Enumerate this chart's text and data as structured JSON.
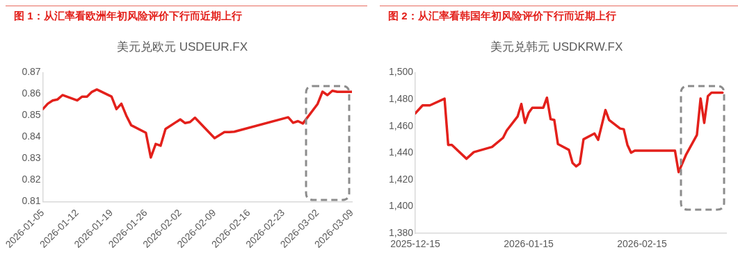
{
  "chart_data": [
    {
      "type": "line",
      "title": "图 1：从汇率看欧洲年初风险评价下行而近期上行",
      "subtitle": "美元兑欧元 USDEUR.FX",
      "x": [
        "2026-01-05",
        "2026-01-06",
        "2026-01-07",
        "2026-01-08",
        "2026-01-09",
        "2026-01-12",
        "2026-01-13",
        "2026-01-14",
        "2026-01-15",
        "2026-01-16",
        "2026-01-19",
        "2026-01-20",
        "2026-01-21",
        "2026-01-22",
        "2026-01-23",
        "2026-01-26",
        "2026-01-27",
        "2026-01-28",
        "2026-01-29",
        "2026-01-30",
        "2026-02-02",
        "2026-02-03",
        "2026-02-04",
        "2026-02-05",
        "2026-02-09",
        "2026-02-11",
        "2026-02-12",
        "2026-02-13",
        "2026-02-24",
        "2026-02-25",
        "2026-02-26",
        "2026-02-27",
        "2026-03-02",
        "2026-03-03",
        "2026-03-04",
        "2026-03-05",
        "2026-03-06",
        "2026-03-09"
      ],
      "series": [
        {
          "color": "#e3201b",
          "values": [
            0.853,
            0.8555,
            0.857,
            0.8575,
            0.8595,
            0.857,
            0.8588,
            0.8588,
            0.861,
            0.8621,
            0.8588,
            0.853,
            0.8555,
            0.85,
            0.8455,
            0.842,
            0.8305,
            0.8368,
            0.836,
            0.8438,
            0.8482,
            0.8465,
            0.847,
            0.849,
            0.8395,
            0.8423,
            0.8423,
            0.8425,
            0.8492,
            0.8466,
            0.8474,
            0.8463,
            0.8554,
            0.8611,
            0.8595,
            0.8615,
            0.861,
            0.861
          ]
        }
      ],
      "xlim": [
        "2026-01-05",
        "2026-03-09"
      ],
      "xticks": [
        "2026-01-05",
        "2026-01-12",
        "2026-01-19",
        "2026-01-26",
        "2026-02-02",
        "2026-02-09",
        "2026-02-16",
        "2026-02-23",
        "2026-03-02",
        "2026-03-09"
      ],
      "ylim": [
        0.81,
        0.87
      ],
      "yticks": [
        0.81,
        0.82,
        0.83,
        0.84,
        0.85,
        0.86,
        0.87
      ],
      "grid": false,
      "legend": false,
      "marker": "none",
      "line_style": "solid"
    },
    {
      "type": "line",
      "title": "图 2：从汇率看韩国年初风险评价下行而近期上行",
      "subtitle": "美元兑韩元 USDKRW.FX",
      "x": [
        "2025-12-15",
        "2025-12-17",
        "2025-12-19",
        "2025-12-23",
        "2025-12-24",
        "2025-12-25",
        "2025-12-29",
        "2025-12-31",
        "2026-01-05",
        "2026-01-08",
        "2026-01-09",
        "2026-01-12",
        "2026-01-13",
        "2026-01-14",
        "2026-01-15",
        "2026-01-16",
        "2026-01-19",
        "2026-01-20",
        "2026-01-21",
        "2026-01-22",
        "2026-01-23",
        "2026-01-26",
        "2026-01-27",
        "2026-01-28",
        "2026-01-29",
        "2026-01-30",
        "2026-02-02",
        "2026-02-03",
        "2026-02-05",
        "2026-02-06",
        "2026-02-09",
        "2026-02-10",
        "2026-02-11",
        "2026-02-12",
        "2026-02-13",
        "2026-02-24",
        "2026-02-25",
        "2026-02-27",
        "2026-03-02",
        "2026-03-03",
        "2026-03-04",
        "2026-03-05",
        "2026-03-06",
        "2026-03-09"
      ],
      "series": [
        {
          "color": "#e3201b",
          "values": [
            1469.5,
            1475.5,
            1475.5,
            1480.5,
            1446,
            1446,
            1435.7,
            1440.6,
            1444.5,
            1451.3,
            1456.7,
            1467.3,
            1476.5,
            1462.4,
            1469.9,
            1473.7,
            1473.7,
            1481.2,
            1465.2,
            1464.6,
            1446.6,
            1442.3,
            1432.5,
            1430,
            1432.1,
            1450.2,
            1454.5,
            1449.8,
            1472,
            1464.6,
            1458.2,
            1457.7,
            1446,
            1440.2,
            1441.7,
            1441.7,
            1425.7,
            1438.5,
            1453.4,
            1480.6,
            1462.4,
            1482.3,
            1485,
            1485
          ]
        }
      ],
      "xlim": [
        "2025-12-15",
        "2026-03-10"
      ],
      "xticks": [
        "2025-12-15",
        "2026-01-15",
        "2026-02-15"
      ],
      "ylim": [
        1380,
        1500
      ],
      "yticks": [
        {
          "value": 1380,
          "label": "1,380"
        },
        {
          "value": 1400,
          "label": "1,400"
        },
        {
          "value": 1420,
          "label": "1,420"
        },
        {
          "value": 1440,
          "label": "1,440"
        },
        {
          "value": 1460,
          "label": "1,460"
        },
        {
          "value": 1480,
          "label": "1,480"
        },
        {
          "value": 1500,
          "label": "1,500"
        }
      ],
      "grid": false,
      "legend": false,
      "marker": "none",
      "line_style": "solid"
    }
  ]
}
